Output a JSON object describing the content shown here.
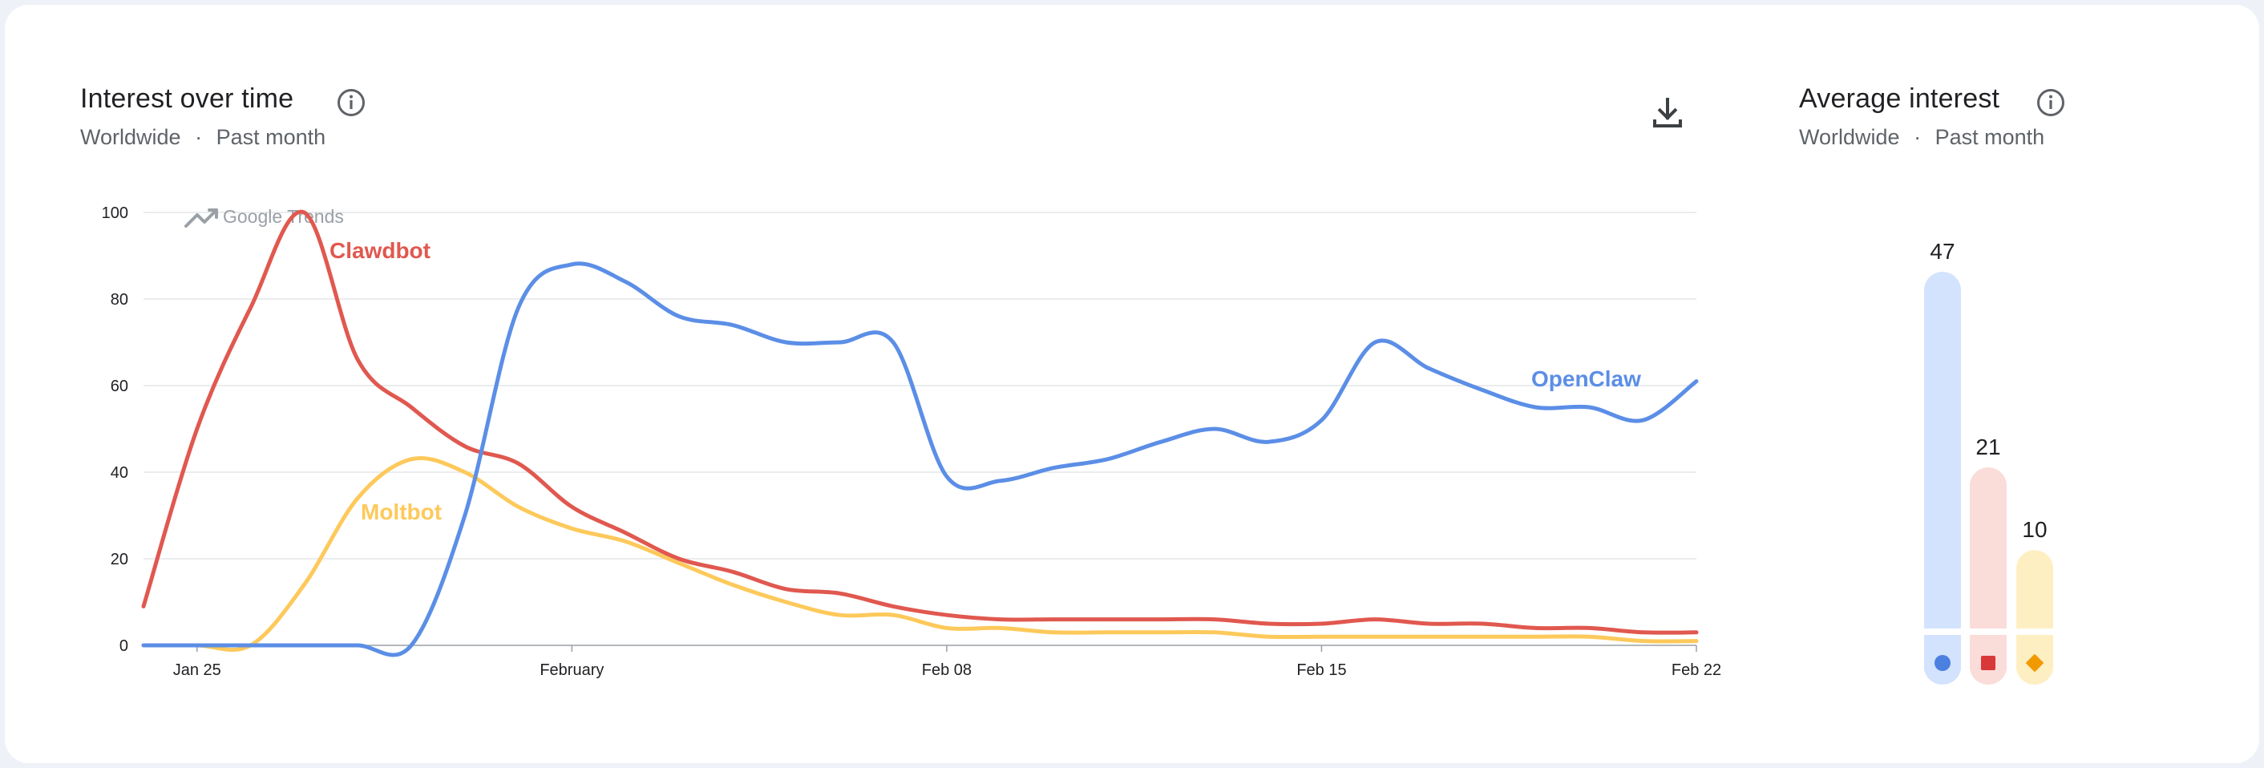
{
  "interest_over_time": {
    "title": "Interest over time",
    "location": "Worldwide",
    "separator": "·",
    "period": "Past month",
    "watermark": "Google Trends"
  },
  "average_interest": {
    "title": "Average interest",
    "location": "Worldwide",
    "separator": "·",
    "period": "Past month"
  },
  "icons": {
    "info": "info-icon",
    "download": "download-icon",
    "trend": "trending-up-icon"
  },
  "chart_data": [
    {
      "type": "line",
      "title": "Interest over time",
      "x_ticks": [
        "Jan 25",
        "February",
        "Feb 08",
        "Feb 15",
        "Feb 22"
      ],
      "x": [
        "Jan 24",
        "Jan 25",
        "Jan 26",
        "Jan 27",
        "Jan 28",
        "Jan 29",
        "Jan 30",
        "Jan 31",
        "Feb 01",
        "Feb 02",
        "Feb 03",
        "Feb 04",
        "Feb 05",
        "Feb 06",
        "Feb 07",
        "Feb 08",
        "Feb 09",
        "Feb 10",
        "Feb 11",
        "Feb 12",
        "Feb 13",
        "Feb 14",
        "Feb 15",
        "Feb 16",
        "Feb 17",
        "Feb 18",
        "Feb 19",
        "Feb 20",
        "Feb 21",
        "Feb 22"
      ],
      "ylim": [
        0,
        100
      ],
      "y_ticks": [
        0,
        20,
        40,
        60,
        80,
        100
      ],
      "grid": true,
      "series": [
        {
          "name": "Clawdbot",
          "color": "#e0584f",
          "values": [
            9,
            50,
            78,
            100,
            66,
            55,
            46,
            42,
            32,
            26,
            20,
            17,
            13,
            12,
            9,
            7,
            6,
            6,
            6,
            6,
            6,
            5,
            5,
            6,
            5,
            5,
            4,
            4,
            3,
            3
          ]
        },
        {
          "name": "OpenClaw",
          "color": "#5b8ee6",
          "values": [
            0,
            0,
            0,
            0,
            0,
            0,
            30,
            78,
            88,
            84,
            76,
            74,
            70,
            70,
            70,
            39,
            38,
            41,
            43,
            47,
            50,
            47,
            52,
            70,
            64,
            59,
            55,
            55,
            52,
            61
          ]
        },
        {
          "name": "Moltbot",
          "color": "#fdc95b",
          "values": [
            0,
            0,
            0,
            14,
            34,
            43,
            40,
            32,
            27,
            24,
            19,
            14,
            10,
            7,
            7,
            4,
            4,
            3,
            3,
            3,
            3,
            2,
            2,
            2,
            2,
            2,
            2,
            2,
            1,
            1
          ]
        }
      ]
    },
    {
      "type": "bar",
      "title": "Average interest",
      "categories": [
        "OpenClaw",
        "Clawdbot",
        "Moltbot"
      ],
      "values": [
        47,
        21,
        10
      ],
      "colors": [
        "#5b8ee6",
        "#e0584f",
        "#fdc95b"
      ],
      "markers": [
        "circle",
        "square",
        "diamond"
      ]
    }
  ]
}
